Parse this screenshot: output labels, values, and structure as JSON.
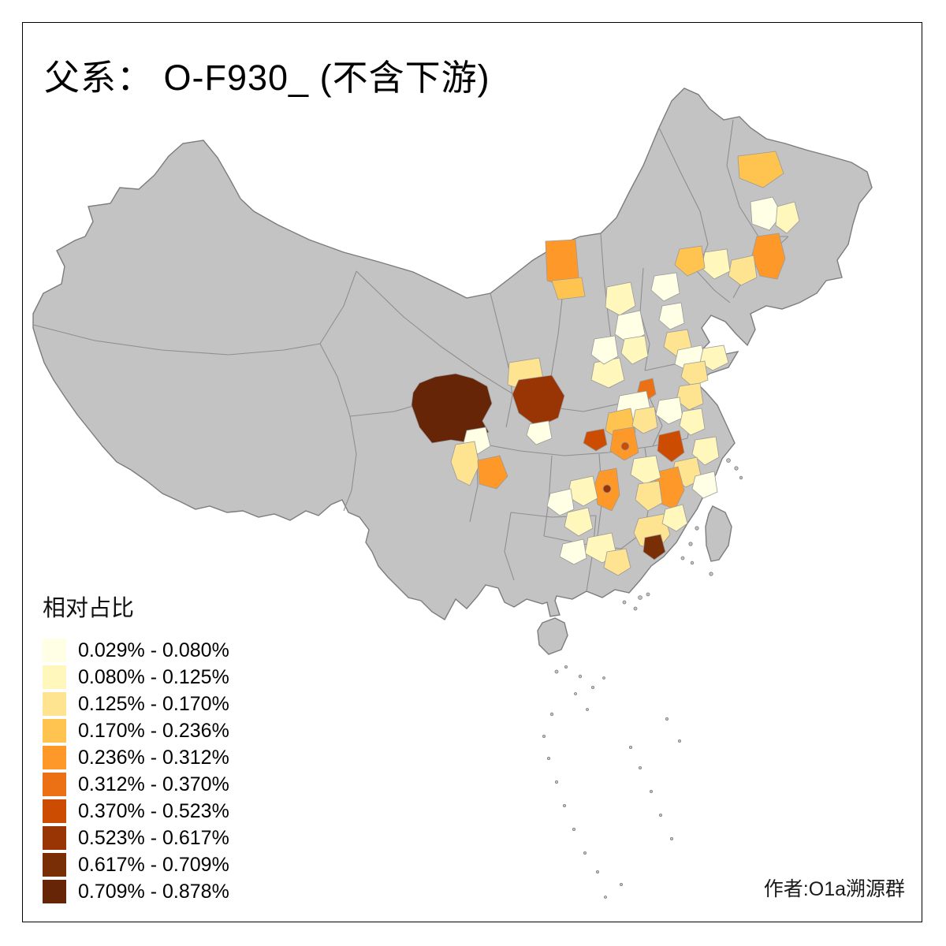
{
  "title": "父系： O-F930_ (不含下游)",
  "legend": {
    "title": "相对占比",
    "classes": [
      {
        "label": "0.029% - 0.080%",
        "color": "#FFFFE5"
      },
      {
        "label": "0.080% - 0.125%",
        "color": "#FFF7BC"
      },
      {
        "label": "0.125% - 0.170%",
        "color": "#FEE391"
      },
      {
        "label": "0.170% - 0.236%",
        "color": "#FEC44F"
      },
      {
        "label": "0.236% - 0.312%",
        "color": "#FE9929"
      },
      {
        "label": "0.312% - 0.370%",
        "color": "#EC7014"
      },
      {
        "label": "0.370% - 0.523%",
        "color": "#CC4C02"
      },
      {
        "label": "0.523% - 0.617%",
        "color": "#993404"
      },
      {
        "label": "0.617% - 0.709%",
        "color": "#7A2E05"
      },
      {
        "label": "0.709% - 0.878%",
        "color": "#662506"
      }
    ]
  },
  "credit": "作者:O1a溯源群",
  "map": {
    "no_data_color": "#c3c3c3",
    "regions": {
      "r1": 3,
      "r2": 0,
      "r3": 1,
      "r4": 4,
      "r5": 2,
      "r6": 1,
      "r7": 3,
      "r8": 4,
      "r9": 3,
      "r10": 1,
      "r11": 0,
      "r12": 1,
      "r13": 0,
      "r14": 0,
      "r15": 2,
      "r16": 0,
      "r17": 1,
      "r18": 2,
      "r19": 2,
      "r20": 7,
      "r21": 0,
      "r22": 1,
      "r23": 5,
      "r24": 0,
      "r25": 3,
      "r26": 2,
      "r27": 6,
      "r28": 4,
      "r30": 2,
      "r31": 0,
      "r32": 1,
      "r33": 6,
      "r34": 1,
      "r35": 2,
      "r36": 0,
      "r37": 4,
      "r38": 1,
      "r39": 2,
      "r40": 4,
      "r42": 1,
      "r43": 0,
      "r44": 1,
      "r45": 2,
      "r46": 8,
      "r47": 1,
      "r48": 1,
      "r49": 2,
      "r50": 0,
      "r51": 9,
      "r52": 0,
      "r53": 2,
      "r54": 4,
      "r57": 0,
      "d1": 6,
      "d2": 7
    }
  }
}
